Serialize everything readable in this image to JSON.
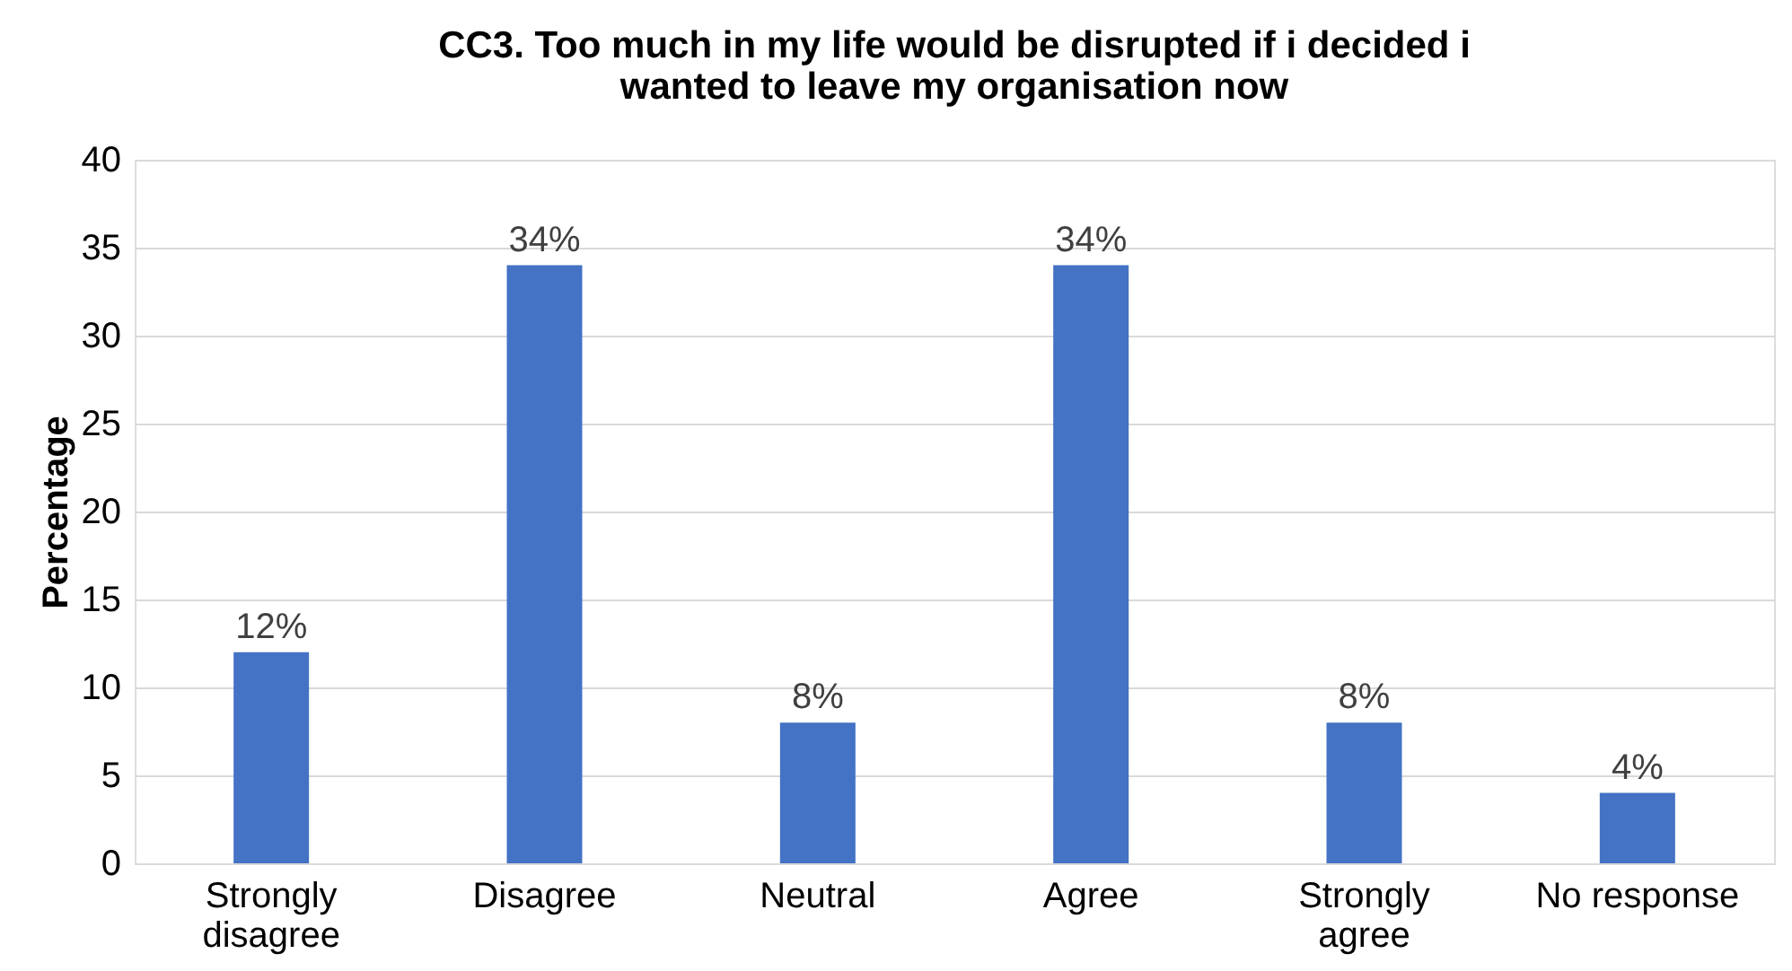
{
  "chart_data": {
    "type": "bar",
    "title": "CC3. Too much in my life would be disrupted if i decided i wanted to leave my organisation now",
    "ylabel": "Percentage",
    "categories": [
      "Strongly disagree",
      "Disagree",
      "Neutral",
      "Agree",
      "Strongly agree",
      "No response"
    ],
    "values": [
      12,
      34,
      8,
      34,
      8,
      4
    ],
    "value_labels": [
      "12%",
      "34%",
      "8%",
      "34%",
      "8%",
      "4%"
    ],
    "color": "#4472c4",
    "ylim": [
      0,
      40
    ],
    "yticks": [
      0,
      5,
      10,
      15,
      20,
      25,
      30,
      35,
      40
    ],
    "grid": "y"
  }
}
